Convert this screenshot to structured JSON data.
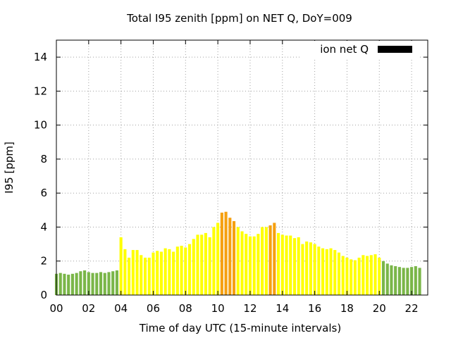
{
  "chart_data": {
    "type": "bar",
    "title": "Total I95 zenith [ppm] on NET Q, DoY=009",
    "xlabel": "Time of day UTC (15-minute intervals)",
    "ylabel": "I95 [ppm]",
    "legend": {
      "label": "ion net Q",
      "color": "#000000",
      "placement": "top-right"
    },
    "grid": true,
    "xlim": [
      0,
      23
    ],
    "ylim": [
      0,
      15
    ],
    "x_ticks": [
      "00",
      "02",
      "04",
      "06",
      "08",
      "10",
      "12",
      "14",
      "16",
      "18",
      "20",
      "22"
    ],
    "y_ticks": [
      "0",
      "2",
      "4",
      "6",
      "8",
      "10",
      "12",
      "14"
    ],
    "interval_hours": 0.25,
    "first_x": 0,
    "colors": {
      "green": "#7ab648",
      "yellow": "#ffff00",
      "orange": "#f5a010"
    },
    "values": [
      1.25,
      1.3,
      1.25,
      1.2,
      1.25,
      1.3,
      1.4,
      1.45,
      1.35,
      1.3,
      1.3,
      1.35,
      1.3,
      1.35,
      1.4,
      1.45,
      3.4,
      2.7,
      2.2,
      2.65,
      2.65,
      2.35,
      2.2,
      2.2,
      2.5,
      2.6,
      2.55,
      2.75,
      2.7,
      2.55,
      2.85,
      2.9,
      2.8,
      3.0,
      3.3,
      3.55,
      3.55,
      3.65,
      3.4,
      4.0,
      4.25,
      4.85,
      4.9,
      4.55,
      4.35,
      4.0,
      3.75,
      3.6,
      3.45,
      3.45,
      3.6,
      4.0,
      4.0,
      4.1,
      4.25,
      3.65,
      3.55,
      3.5,
      3.5,
      3.35,
      3.4,
      3.0,
      3.15,
      3.1,
      3.0,
      2.85,
      2.75,
      2.7,
      2.75,
      2.65,
      2.5,
      2.3,
      2.2,
      2.1,
      2.05,
      2.2,
      2.35,
      2.3,
      2.35,
      2.4,
      2.2,
      2.0,
      1.85,
      1.75,
      1.7,
      1.65,
      1.6,
      1.6,
      1.65,
      1.7,
      1.6
    ],
    "bar_colors": [
      "green",
      "green",
      "green",
      "green",
      "green",
      "green",
      "green",
      "green",
      "green",
      "green",
      "green",
      "green",
      "green",
      "green",
      "green",
      "green",
      "yellow",
      "yellow",
      "yellow",
      "yellow",
      "yellow",
      "yellow",
      "yellow",
      "yellow",
      "yellow",
      "yellow",
      "yellow",
      "yellow",
      "yellow",
      "yellow",
      "yellow",
      "yellow",
      "yellow",
      "yellow",
      "yellow",
      "yellow",
      "yellow",
      "yellow",
      "yellow",
      "yellow",
      "yellow",
      "orange",
      "orange",
      "orange",
      "orange",
      "yellow",
      "yellow",
      "yellow",
      "yellow",
      "yellow",
      "yellow",
      "yellow",
      "yellow",
      "orange",
      "orange",
      "yellow",
      "yellow",
      "yellow",
      "yellow",
      "yellow",
      "yellow",
      "yellow",
      "yellow",
      "yellow",
      "yellow",
      "yellow",
      "yellow",
      "yellow",
      "yellow",
      "yellow",
      "yellow",
      "yellow",
      "yellow",
      "yellow",
      "yellow",
      "yellow",
      "yellow",
      "yellow",
      "yellow",
      "yellow",
      "yellow",
      "green",
      "green",
      "green",
      "green",
      "green",
      "green",
      "green",
      "green",
      "green",
      "green"
    ]
  }
}
